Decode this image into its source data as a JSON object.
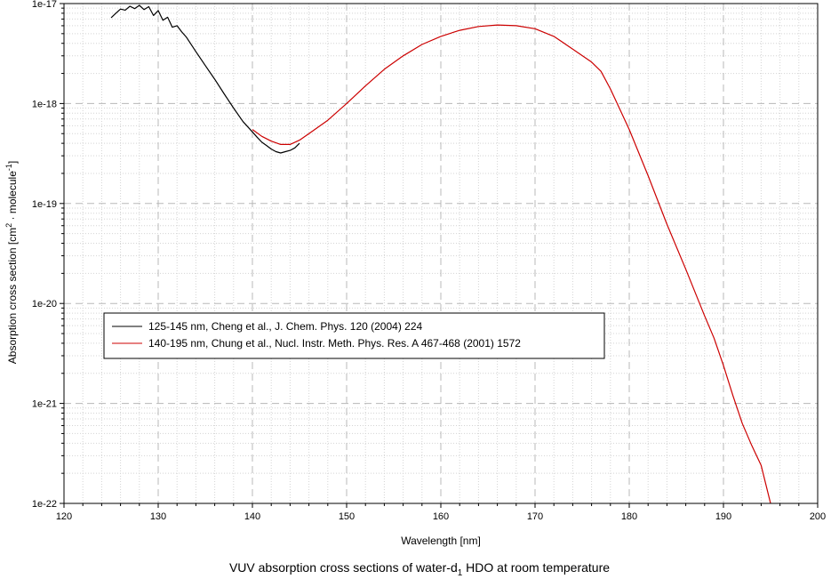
{
  "caption": {
    "pre": "VUV absorption cross sections of water-d",
    "sub": "1",
    "post": " HDO at room temperature"
  },
  "chart_data": {
    "type": "line",
    "title": "",
    "xlabel": "Wavelength [nm]",
    "ylabel": {
      "main": "Absorption cross section [cm",
      "sup1": "2",
      "mid": " · molecule",
      "sup2": "-1",
      "end": "]"
    },
    "xlim": [
      120,
      200
    ],
    "ylim": [
      1e-22,
      1e-17
    ],
    "yscale": "log",
    "grid": true,
    "legend_position": "center-left",
    "x_ticks": [
      120,
      130,
      140,
      150,
      160,
      170,
      180,
      190,
      200
    ],
    "x_tick_labels": [
      "120",
      "130",
      "140",
      "150",
      "160",
      "170",
      "180",
      "190",
      "200"
    ],
    "y_ticks": [
      1e-22,
      1e-21,
      1e-20,
      1e-19,
      1e-18,
      1e-17
    ],
    "y_tick_labels": [
      "1e-22",
      "1e-21",
      "1e-20",
      "1e-19",
      "1e-18",
      "1e-17"
    ],
    "series": [
      {
        "name": "125-145 nm, Cheng et al., J. Chem. Phys. 120 (2004) 224",
        "color": "#000000",
        "x": [
          125,
          125.5,
          126,
          126.5,
          127,
          127.5,
          128,
          128.5,
          129,
          129.5,
          130,
          130.5,
          131,
          131.5,
          132,
          132.5,
          133,
          134,
          135,
          136,
          137,
          138,
          139,
          140,
          140.5,
          141,
          141.5,
          142,
          142.5,
          143,
          143.5,
          144,
          144.5,
          145
        ],
        "y": [
          7.2e-18,
          8e-18,
          8.8e-18,
          8.6e-18,
          9.4e-18,
          8.9e-18,
          9.6e-18,
          8.7e-18,
          9.3e-18,
          7.6e-18,
          8.5e-18,
          6.8e-18,
          7.3e-18,
          5.8e-18,
          6e-18,
          5.2e-18,
          4.6e-18,
          3.3e-18,
          2.4e-18,
          1.75e-18,
          1.25e-18,
          9e-19,
          6.6e-19,
          5.2e-19,
          4.6e-19,
          4.1e-19,
          3.8e-19,
          3.5e-19,
          3.3e-19,
          3.2e-19,
          3.3e-19,
          3.4e-19,
          3.6e-19,
          4e-19
        ]
      },
      {
        "name": "140-195 nm, Chung et al., Nucl. Instr. Meth. Phys. Res. A 467-468 (2001) 1572",
        "color": "#cc0000",
        "x": [
          140,
          141,
          142,
          143,
          144,
          145,
          146,
          148,
          150,
          152,
          154,
          156,
          158,
          160,
          162,
          164,
          166,
          168,
          170,
          172,
          174,
          176,
          177,
          178,
          180,
          182,
          184,
          186,
          188,
          189,
          190,
          191,
          192,
          193,
          194,
          195
        ],
        "y": [
          5.5e-19,
          4.7e-19,
          4.2e-19,
          3.9e-19,
          3.9e-19,
          4.3e-19,
          5e-19,
          6.8e-19,
          1e-18,
          1.5e-18,
          2.2e-18,
          3e-18,
          3.9e-18,
          4.7e-18,
          5.4e-18,
          5.9e-18,
          6.1e-18,
          6e-18,
          5.6e-18,
          4.7e-18,
          3.5e-18,
          2.6e-18,
          2.1e-18,
          1.4e-18,
          5.5e-19,
          1.9e-19,
          6.2e-20,
          2.2e-20,
          7.5e-21,
          4.5e-21,
          2.4e-21,
          1.2e-21,
          6.3e-22,
          3.8e-22,
          2.4e-22,
          1e-22
        ]
      }
    ]
  }
}
